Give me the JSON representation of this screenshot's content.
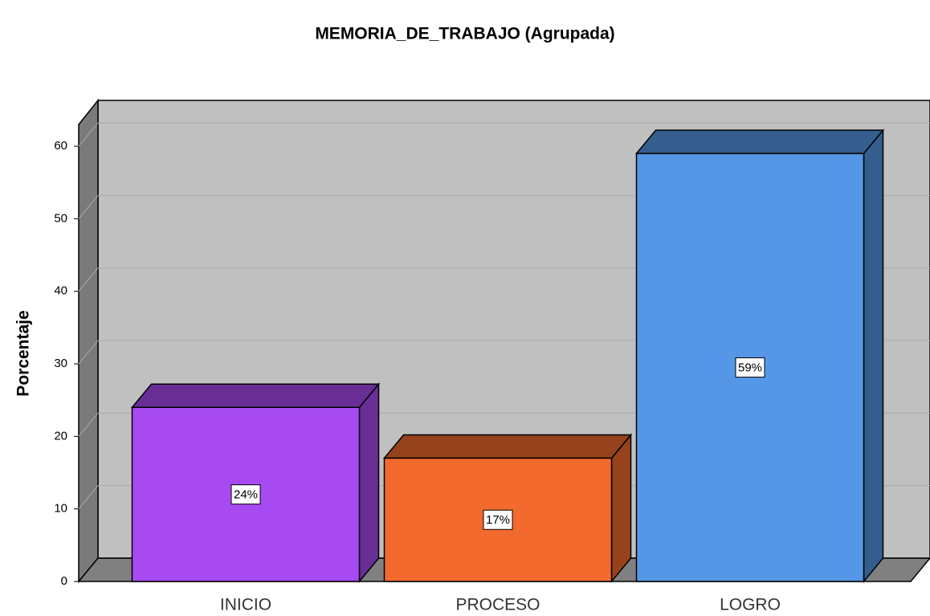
{
  "chart_data": {
    "type": "bar3d",
    "title": "MEMORIA_DE_TRABAJO (Agrupada)",
    "y_label": "Porcentaje",
    "categories": [
      "INICIO",
      "PROCESO",
      "LOGRO"
    ],
    "values": [
      24,
      17,
      59
    ],
    "value_labels": [
      "24%",
      "17%",
      "59%"
    ],
    "colors": [
      "#a84af2",
      "#f26a2e",
      "#5597e6"
    ],
    "ylim": [
      0,
      63
    ],
    "yticks": [
      0,
      10,
      20,
      30,
      40,
      50,
      60
    ],
    "grid": true
  }
}
